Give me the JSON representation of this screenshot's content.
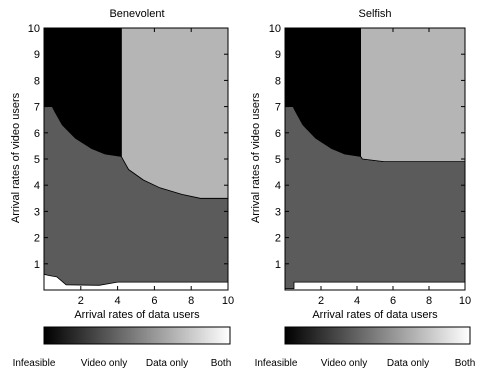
{
  "chart_data": [
    {
      "type": "heatmap",
      "title": "Benevolent",
      "xlabel": "Arrival rates of data users",
      "ylabel": "Arrival rates of video users",
      "xlim": [
        0,
        10
      ],
      "ylim": [
        0,
        10
      ],
      "xticks": [
        2,
        4,
        6,
        8,
        10
      ],
      "yticks": [
        1,
        2,
        3,
        4,
        5,
        6,
        7,
        8,
        9,
        10
      ],
      "region_boundaries": {
        "infeasible": [
          [
            0,
            10
          ],
          [
            4.2,
            10
          ],
          [
            4.2,
            5.1
          ],
          [
            3.3,
            5.2
          ],
          [
            2.6,
            5.4
          ],
          [
            1.7,
            5.8
          ],
          [
            1.0,
            6.3
          ],
          [
            0.6,
            6.8
          ],
          [
            0.45,
            7.0
          ],
          [
            0,
            7.0
          ]
        ],
        "video_only": [
          [
            0,
            7.0
          ],
          [
            0.45,
            7.0
          ],
          [
            0.6,
            6.8
          ],
          [
            1.0,
            6.3
          ],
          [
            1.7,
            5.8
          ],
          [
            2.6,
            5.4
          ],
          [
            3.3,
            5.2
          ],
          [
            4.2,
            5.1
          ],
          [
            4.6,
            4.6
          ],
          [
            5.4,
            4.2
          ],
          [
            6.3,
            3.9
          ],
          [
            7.5,
            3.65
          ],
          [
            8.5,
            3.5
          ],
          [
            10,
            3.5
          ],
          [
            10,
            0.3
          ],
          [
            4.0,
            0.3
          ],
          [
            3.0,
            0.18
          ],
          [
            1.2,
            0.2
          ],
          [
            0.7,
            0.5
          ],
          [
            0.3,
            0.55
          ],
          [
            0,
            0.6
          ]
        ],
        "data_only": [
          [
            4.2,
            10
          ],
          [
            10,
            10
          ],
          [
            10,
            3.5
          ],
          [
            8.5,
            3.5
          ],
          [
            7.5,
            3.65
          ],
          [
            6.3,
            3.9
          ],
          [
            5.4,
            4.2
          ],
          [
            4.6,
            4.6
          ],
          [
            4.2,
            5.1
          ]
        ]
      },
      "regions": [
        "Infeasible",
        "Video only",
        "Data only",
        "Both"
      ]
    },
    {
      "type": "heatmap",
      "title": "Selfish",
      "xlabel": "Arrival rates of data users",
      "ylabel": "Arrival rates of video users",
      "xlim": [
        0,
        10
      ],
      "ylim": [
        0,
        10
      ],
      "xticks": [
        2,
        4,
        6,
        8,
        10
      ],
      "yticks": [
        1,
        2,
        3,
        4,
        5,
        6,
        7,
        8,
        9,
        10
      ],
      "region_boundaries": {
        "infeasible": [
          [
            0,
            10
          ],
          [
            4.2,
            10
          ],
          [
            4.2,
            5.1
          ],
          [
            3.3,
            5.2
          ],
          [
            2.6,
            5.4
          ],
          [
            1.7,
            5.8
          ],
          [
            1.0,
            6.3
          ],
          [
            0.6,
            6.8
          ],
          [
            0.45,
            7.0
          ],
          [
            0,
            7.0
          ]
        ],
        "video_only": [
          [
            0,
            7.0
          ],
          [
            0.45,
            7.0
          ],
          [
            0.6,
            6.8
          ],
          [
            1.0,
            6.3
          ],
          [
            1.7,
            5.8
          ],
          [
            2.6,
            5.4
          ],
          [
            3.3,
            5.2
          ],
          [
            4.2,
            5.1
          ],
          [
            4.3,
            5.0
          ],
          [
            5.5,
            4.9
          ],
          [
            10,
            4.9
          ],
          [
            10,
            0.3
          ],
          [
            0.5,
            0.3
          ],
          [
            0.5,
            0.05
          ],
          [
            0,
            0.05
          ]
        ],
        "data_only": [
          [
            4.2,
            10
          ],
          [
            10,
            10
          ],
          [
            10,
            4.9
          ],
          [
            5.5,
            4.9
          ],
          [
            4.3,
            5.0
          ],
          [
            4.2,
            5.1
          ]
        ]
      },
      "regions": [
        "Infeasible",
        "Video only",
        "Data only",
        "Both"
      ]
    }
  ],
  "colors": {
    "infeasible": "#000000",
    "video_only": "#5b5b5b",
    "data_only": "#b5b5b5",
    "both": "#ffffff",
    "axis": "#000000"
  }
}
